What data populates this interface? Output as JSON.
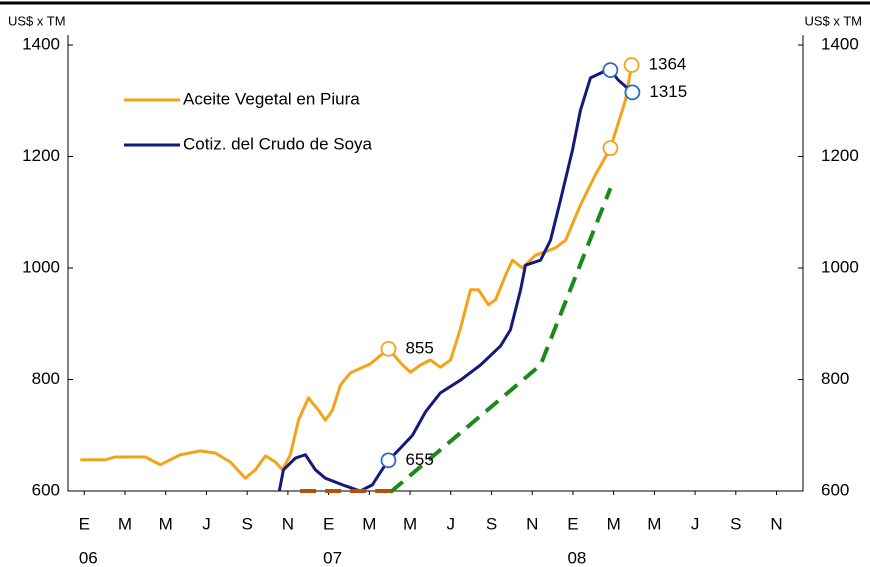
{
  "chart_data": {
    "type": "line",
    "y_label": "US$ x TM",
    "y2_label": "US$ x TM",
    "xlim": [
      -0.8,
      35.3
    ],
    "ylim": [
      600,
      1400
    ],
    "y2lim": [
      600,
      1400
    ],
    "yticks": [
      600,
      800,
      1000,
      1200,
      1400
    ],
    "y2ticks": [
      600,
      800,
      1000,
      1200,
      1400
    ],
    "xticks": [
      {
        "value": 0,
        "label": "E"
      },
      {
        "value": 2,
        "label": "M"
      },
      {
        "value": 4,
        "label": "M"
      },
      {
        "value": 6,
        "label": "J"
      },
      {
        "value": 8,
        "label": "S"
      },
      {
        "value": 10,
        "label": "N"
      },
      {
        "value": 12,
        "label": "E"
      },
      {
        "value": 14,
        "label": "M"
      },
      {
        "value": 16,
        "label": "M"
      },
      {
        "value": 18,
        "label": "J"
      },
      {
        "value": 20,
        "label": "S"
      },
      {
        "value": 22,
        "label": "N"
      },
      {
        "value": 24,
        "label": "E"
      },
      {
        "value": 26,
        "label": "M"
      },
      {
        "value": 28,
        "label": "M"
      },
      {
        "value": 30,
        "label": "J"
      },
      {
        "value": 32,
        "label": "S"
      },
      {
        "value": 34,
        "label": "N"
      }
    ],
    "xyears": [
      {
        "value": 0,
        "label": "06"
      },
      {
        "value": 12,
        "label": "07"
      },
      {
        "value": 24,
        "label": "08"
      }
    ],
    "legend": "upper left",
    "series": [
      {
        "name": "Aceite Vegetal en Piura",
        "color": "#f5a21b",
        "x": [
          -0.2,
          1.03,
          1.52,
          3.0,
          3.73,
          4.72,
          5.7,
          6.44,
          7.17,
          7.91,
          8.4,
          8.9,
          9.39,
          9.73,
          10.12,
          10.52,
          11.01,
          11.5,
          11.84,
          12.19,
          12.58,
          13.07,
          14.05,
          14.94,
          15.53,
          16.02,
          16.51,
          17.0,
          17.49,
          17.99,
          18.48,
          18.97,
          19.36,
          19.85,
          20.2,
          20.69,
          21.03,
          21.52,
          22.16,
          23.14,
          23.64,
          24.37,
          25.1,
          25.84,
          26.58,
          26.88
        ],
        "values": [
          656,
          656,
          661,
          661,
          647,
          665,
          672,
          668,
          652,
          623,
          638,
          663,
          652,
          638,
          665,
          727,
          767,
          745,
          727,
          745,
          790,
          812,
          828,
          855,
          830,
          813,
          826,
          835,
          822,
          835,
          892,
          961,
          961,
          934,
          943,
          987,
          1014,
          1000,
          1023,
          1036,
          1050,
          1113,
          1167,
          1215,
          1301,
          1364
        ]
      },
      {
        "name": "Cotiz. del Crudo de Soya",
        "color": "#141a7a",
        "x": [
          9.58,
          9.78,
          10.37,
          10.86,
          11.35,
          11.84,
          12.83,
          13.56,
          14.15,
          14.55,
          14.94,
          15.53,
          16.12,
          16.76,
          17.49,
          18.48,
          19.46,
          20.44,
          20.93,
          21.43,
          21.67,
          22.41,
          22.9,
          23.39,
          23.98,
          24.37,
          24.86,
          25.5,
          25.84,
          26.23,
          26.92
        ],
        "values": [
          600,
          638,
          659,
          665,
          638,
          623,
          609,
          600,
          611,
          634,
          655,
          677,
          700,
          742,
          776,
          799,
          826,
          860,
          889,
          961,
          1005,
          1014,
          1050,
          1122,
          1212,
          1283,
          1341,
          1352,
          1355,
          1337,
          1315
        ]
      },
      {
        "color": "#1a8a1a",
        "dashed": true,
        "x": [
          15.04,
          22.41,
          25.84
        ],
        "values": [
          598,
          826,
          1143
        ]
      },
      {
        "color": "#b5500b",
        "dashed": true,
        "x": [
          10.6,
          15.2
        ],
        "values": [
          600,
          600
        ]
      }
    ],
    "annotations": [
      {
        "series": 0,
        "x": 14.94,
        "y": 855,
        "label": 855
      },
      {
        "series": 0,
        "x": 25.84,
        "y": 1215
      },
      {
        "series": 0,
        "x": 26.88,
        "y": 1364,
        "label": 1364
      },
      {
        "series": 1,
        "x": 14.94,
        "y": 655,
        "label": 655
      },
      {
        "series": 1,
        "x": 25.84,
        "y": 1355
      },
      {
        "series": 1,
        "x": 26.92,
        "y": 1315,
        "label": 1315
      }
    ]
  }
}
